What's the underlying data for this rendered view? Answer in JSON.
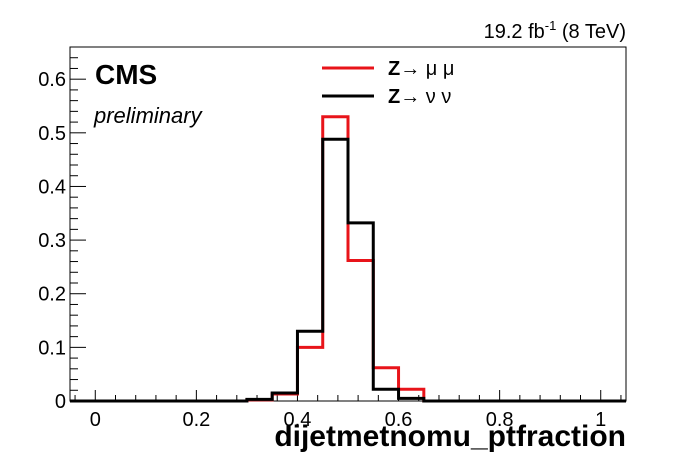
{
  "header": {
    "lumi_value": "19.2 fb",
    "lumi_exponent": "-1",
    "lumi_energy": " (8 TeV)"
  },
  "labels": {
    "experiment": "CMS",
    "status": "preliminary"
  },
  "chart_data": {
    "type": "histogram",
    "xlabel": "dijetmetnomu_ptfraction",
    "ylabel": "",
    "xlim": [
      -0.05,
      1.05
    ],
    "ylim": [
      0,
      0.66
    ],
    "x_ticks": [
      0,
      0.2,
      0.4,
      0.6,
      0.8,
      1
    ],
    "x_tick_labels": [
      "0",
      "0.2",
      "0.4",
      "0.6",
      "0.8",
      "1"
    ],
    "y_ticks": [
      0,
      0.1,
      0.2,
      0.3,
      0.4,
      0.5,
      0.6
    ],
    "y_tick_labels": [
      "0",
      "0.1",
      "0.2",
      "0.3",
      "0.4",
      "0.5",
      "0.6"
    ],
    "bin_edges": [
      -0.05,
      0.0,
      0.05,
      0.1,
      0.15,
      0.2,
      0.25,
      0.3,
      0.35,
      0.4,
      0.45,
      0.5,
      0.55,
      0.6,
      0.65,
      0.7,
      0.75,
      0.8,
      0.85,
      0.9,
      0.95,
      1.0,
      1.05
    ],
    "series": [
      {
        "name": "Z→ μ μ",
        "color": "#e8141a",
        "values": [
          0,
          0,
          0,
          0,
          0,
          0,
          0,
          0.002,
          0.013,
          0.1,
          0.53,
          0.262,
          0.062,
          0.022,
          0,
          0,
          0,
          0,
          0,
          0,
          0,
          0
        ]
      },
      {
        "name": "Z→ ν ν",
        "color": "#000000",
        "values": [
          0,
          0,
          0,
          0,
          0,
          0,
          0,
          0.003,
          0.015,
          0.13,
          0.488,
          0.332,
          0.022,
          0.005,
          0,
          0,
          0,
          0,
          0,
          0,
          0,
          0
        ]
      }
    ],
    "legend_position": "top-center",
    "grid": false
  }
}
